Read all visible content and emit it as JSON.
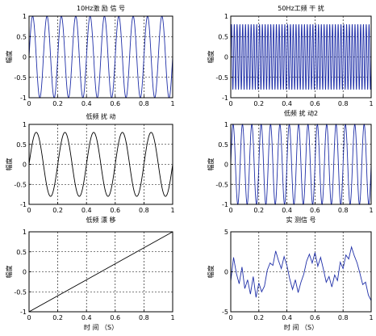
{
  "chart_data": [
    {
      "type": "line",
      "title": "10Hz激 励 信 号",
      "xlabel": "",
      "ylabel": "幅度",
      "xlim": [
        0,
        1
      ],
      "ylim": [
        -1,
        1
      ],
      "xticks": [
        "0",
        "0.2",
        "0.4",
        "0.6",
        "0.8",
        "1"
      ],
      "yticks": [
        "-1",
        "-0.5",
        "0",
        "0.5",
        "1"
      ],
      "grid": true,
      "color": "#1f2fa8",
      "series": [
        {
          "function": "sine",
          "amplitude": 1,
          "frequency_hz": 10,
          "phase": 0,
          "offset": 0
        }
      ]
    },
    {
      "type": "line",
      "title": "50Hz工频 干 扰",
      "xlabel": "低频 扰 动2",
      "ylabel": "幅度",
      "xlim": [
        0,
        1
      ],
      "ylim": [
        -1,
        1
      ],
      "xticks": [
        "0",
        "0.2",
        "0.4",
        "0.6",
        "0.8",
        "1"
      ],
      "yticks": [
        "-1",
        "-0.5",
        "0",
        "0.5",
        "1"
      ],
      "grid": true,
      "color": "#1f2fa8",
      "series": [
        {
          "function": "sine",
          "amplitude": 0.8,
          "frequency_hz": 50,
          "phase": 0,
          "offset": 0
        }
      ]
    },
    {
      "type": "line",
      "title": "低频 扰 动",
      "xlabel": "低频 漂 移",
      "ylabel": "幅度",
      "xlim": [
        0,
        1
      ],
      "ylim": [
        -1,
        1
      ],
      "xticks": [
        "0",
        "0.2",
        "0.4",
        "0.6",
        "0.8",
        "1"
      ],
      "yticks": [
        "-1",
        "-0.5",
        "0",
        "0.5",
        "1"
      ],
      "grid": true,
      "color": "#000000",
      "series": [
        {
          "function": "sine",
          "amplitude": 0.8,
          "frequency_hz": 5,
          "phase": 0,
          "offset": 0
        }
      ]
    },
    {
      "type": "line",
      "title": "",
      "xlabel": "实 测信 号",
      "ylabel": "幅度",
      "xlim": [
        0,
        1
      ],
      "ylim": [
        -1,
        1
      ],
      "xticks": [
        "0",
        "0.2",
        "0.4",
        "0.6",
        "0.8",
        "1"
      ],
      "yticks": [
        "-1",
        "-0.5",
        "0",
        "0.5",
        "1"
      ],
      "grid": true,
      "color": "#1f2fa8",
      "series": [
        {
          "function": "sine",
          "amplitude": 1,
          "frequency_hz": 15,
          "phase": 0,
          "offset": 0
        }
      ]
    },
    {
      "type": "line",
      "title": "",
      "xlabel": "时 间 （S）",
      "ylabel": "幅度",
      "xlim": [
        0,
        1
      ],
      "ylim": [
        -1,
        1
      ],
      "xticks": [
        "0",
        "0.2",
        "0.4",
        "0.6",
        "0.8",
        "1"
      ],
      "yticks": [
        "-1",
        "-0.5",
        "0",
        "0.5",
        "1"
      ],
      "grid": true,
      "color": "#000000",
      "series": [
        {
          "function": "linear",
          "x": [
            0,
            1
          ],
          "y": [
            -1,
            1
          ]
        }
      ]
    },
    {
      "type": "line",
      "title": "",
      "xlabel": "时 间 （S）",
      "ylabel": "幅度",
      "xlim": [
        0,
        1
      ],
      "ylim": [
        -5,
        5
      ],
      "xticks": [
        "0",
        "0.2",
        "0.4",
        "0.6",
        "0.8",
        "1"
      ],
      "yticks": [
        "-5",
        "0",
        "5"
      ],
      "grid": true,
      "color": "#1f2fa8",
      "series": [
        {
          "function": "sampled",
          "x": [
            0,
            0.02,
            0.04,
            0.06,
            0.08,
            0.1,
            0.12,
            0.14,
            0.16,
            0.18,
            0.2,
            0.22,
            0.24,
            0.26,
            0.28,
            0.3,
            0.32,
            0.34,
            0.36,
            0.38,
            0.4,
            0.42,
            0.44,
            0.46,
            0.48,
            0.5,
            0.52,
            0.54,
            0.56,
            0.58,
            0.6,
            0.62,
            0.64,
            0.66,
            0.68,
            0.7,
            0.72,
            0.74,
            0.76,
            0.78,
            0.8,
            0.82,
            0.84,
            0.86,
            0.88,
            0.9,
            0.92,
            0.94,
            0.96,
            0.98,
            1
          ],
          "y": [
            -1.2,
            1.8,
            -0.2,
            -1.5,
            0.6,
            -2.1,
            -1.0,
            -2.8,
            -0.6,
            -3.2,
            -1.4,
            -2.5,
            -1.8,
            0.2,
            1.1,
            0.8,
            2.6,
            1.4,
            0.4,
            1.9,
            0.8,
            -0.9,
            -2.2,
            -1.0,
            -2.6,
            -1.3,
            -0.3,
            1.3,
            2.2,
            1.1,
            2.4,
            0.7,
            1.8,
            0.3,
            -1.3,
            -0.6,
            -1.9,
            -0.4,
            -1.1,
            1.2,
            0.4,
            2.1,
            1.6,
            3.1,
            2.0,
            1.1,
            -0.2,
            -1.6,
            -1.3,
            -2.9,
            -3.6
          ]
        }
      ]
    }
  ]
}
